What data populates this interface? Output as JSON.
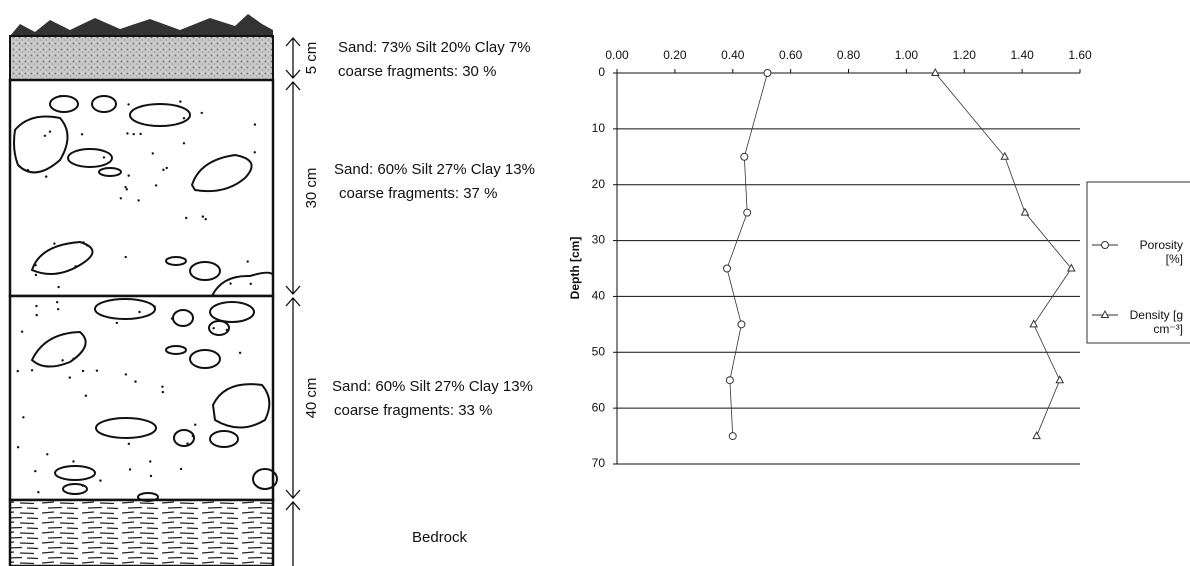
{
  "profile": {
    "layers": [
      {
        "thickness": "5 cm",
        "texture": "Sand: 73% Silt 20% Clay 7%",
        "fragments": "coarse fragments: 30 %"
      },
      {
        "thickness": "30 cm",
        "texture": "Sand: 60% Silt 27% Clay 13%",
        "fragments": "coarse fragments: 37 %"
      },
      {
        "thickness": "40 cm",
        "texture": "Sand: 60% Silt 27% Clay 13%",
        "fragments": "coarse fragments: 33 %"
      }
    ],
    "bedrock": "Bedrock"
  },
  "chart_data": {
    "type": "line",
    "ylabel": "Depth [cm]",
    "xlim": [
      0,
      1.6
    ],
    "xticks": [
      {
        "value": 0,
        "label": "0.00"
      },
      {
        "value": 0.2,
        "label": "0.20"
      },
      {
        "value": 0.4,
        "label": "0.40"
      },
      {
        "value": 0.6,
        "label": "0.60"
      },
      {
        "value": 0.8,
        "label": "0.80"
      },
      {
        "value": 1.0,
        "label": "1.00"
      },
      {
        "value": 1.2,
        "label": "1.20"
      },
      {
        "value": 1.4,
        "label": "1.40"
      },
      {
        "value": 1.6,
        "label": "1.60"
      }
    ],
    "ylim": [
      0,
      70
    ],
    "yticks": [
      0,
      10,
      20,
      30,
      40,
      50,
      60,
      70
    ],
    "y_inverted": true,
    "grid": true,
    "legend": "right",
    "series": [
      {
        "name": "Porosity [%]",
        "color": "#333333",
        "marker": "circle",
        "x": [
          0.52,
          0.44,
          0.45,
          0.38,
          0.43,
          0.39,
          0.4
        ],
        "y": [
          0,
          15,
          25,
          35,
          45,
          55,
          65
        ]
      },
      {
        "name": "Density [g cm⁻³]",
        "color": "#333333",
        "marker": "triangle",
        "x": [
          1.1,
          1.34,
          1.41,
          1.57,
          1.44,
          1.53,
          1.45
        ],
        "y": [
          0,
          15,
          25,
          35,
          45,
          55,
          65
        ]
      }
    ]
  }
}
